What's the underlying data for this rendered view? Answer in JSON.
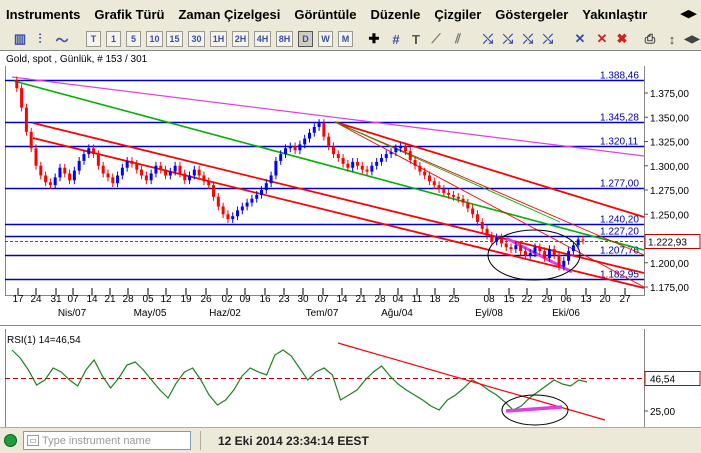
{
  "menu": {
    "items": [
      "Instruments",
      "Grafik Türü",
      "Zaman Çizelgesi",
      "Görüntüle",
      "Düzenle",
      "Çizgiler",
      "Göstergeler",
      "Yakınlaştır"
    ]
  },
  "toolbar": {
    "timeframes": [
      "T",
      "1",
      "5",
      "10",
      "15",
      "30",
      "1H",
      "2H",
      "4H",
      "8H",
      "D",
      "W",
      "M"
    ],
    "active_timeframe": "D"
  },
  "chart": {
    "header": "Gold, spot , Günlük, # 153 / 301",
    "price_ticks": [
      "1.375,00",
      "1.350,00",
      "1.325,00",
      "1.300,00",
      "1.275,00",
      "1.250,00",
      "1.225,00",
      "1.200,00",
      "1.175,00"
    ],
    "level_labels": [
      "1.388,46",
      "1.345,28",
      "1.320,11",
      "1.277,00",
      "1.240,20",
      "1.227,20",
      "1.207,76",
      "1.182,95"
    ],
    "current_price": "1.222,93",
    "date_ticks": [
      "17",
      "24",
      "31",
      "07",
      "14",
      "21",
      "28",
      "05",
      "12",
      "19",
      "26",
      "02",
      "09",
      "16",
      "23",
      "30",
      "07",
      "14",
      "21",
      "28",
      "04",
      "11",
      "18",
      "25",
      "08",
      "15",
      "22",
      "29",
      "06",
      "13",
      "20",
      "27"
    ],
    "month_labels": [
      "Nis/07",
      "May/05",
      "Haz/02",
      "Tem/07",
      "Ağu/04",
      "Eyl/08",
      "Eki/06"
    ],
    "colors": {
      "up": "#0000ff",
      "down": "#ff0000",
      "green_line": "#00b000",
      "magenta_line": "#e040e0",
      "level_line": "#0000c0"
    }
  },
  "rsi": {
    "label": "RSI(1) 14=46,54",
    "value": "46,54",
    "tick": "25,00"
  },
  "status": {
    "placeholder": "Type instrument name",
    "datetime": "12 Eki 2014 23:34:14 EEST"
  }
}
